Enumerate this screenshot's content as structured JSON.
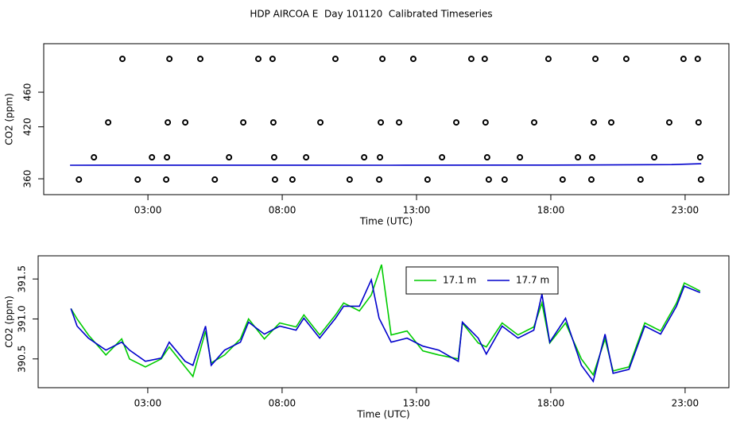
{
  "title": "HDP AIRCOA E  Day 101120  Calibrated Timeseries",
  "chart_data": [
    {
      "type": "scatter",
      "x_label": "Time (UTC)",
      "y_label": "CO2 (ppm)",
      "xlim": [
        -0.88,
        24.63
      ],
      "ylim": [
        341.7,
        516
      ],
      "xticks": [
        {
          "value": 3,
          "label": "03:00"
        },
        {
          "value": 8,
          "label": "08:00"
        },
        {
          "value": 13,
          "label": "13:00"
        },
        {
          "value": 18,
          "label": "18:00"
        },
        {
          "value": 23,
          "label": "23:00"
        }
      ],
      "yticks": [
        360,
        420,
        460
      ],
      "series": [
        {
          "color": "#000000",
          "x": [
            2.05,
            3.8,
            4.95,
            7.11,
            7.64,
            9.98,
            11.73,
            12.88,
            15.04,
            15.54,
            17.91,
            19.66,
            20.81,
            22.94,
            23.47,
            1.52,
            3.74,
            4.39,
            6.55,
            7.67,
            9.42,
            11.67,
            12.35,
            14.48,
            15.57,
            17.38,
            19.6,
            20.25,
            22.41,
            23.5,
            0.99,
            3.15,
            3.71,
            6.02,
            7.7,
            8.89,
            11.05,
            11.64,
            13.95,
            15.63,
            16.85,
            19.01,
            19.54,
            21.85,
            23.56,
            0.43,
            2.62,
            3.68,
            5.49,
            7.73,
            8.38,
            10.51,
            11.61,
            13.41,
            15.69,
            16.28,
            18.44,
            19.51,
            21.34,
            23.59
          ],
          "values": [
            498.5,
            498.5,
            498.5,
            498.5,
            498.5,
            498.5,
            498.5,
            498.5,
            498.5,
            498.5,
            498.5,
            498.5,
            498.5,
            498.5,
            498.5,
            425.1,
            425.1,
            425.1,
            425.1,
            425.1,
            425.1,
            425.1,
            425.1,
            425.1,
            425.1,
            425.1,
            425.1,
            425.1,
            425.1,
            425.1,
            384.8,
            384.8,
            384.8,
            384.8,
            384.8,
            384.8,
            384.8,
            384.8,
            384.8,
            384.8,
            384.8,
            384.8,
            384.8,
            384.8,
            384.8,
            359.1,
            359.1,
            359.1,
            359.1,
            359.1,
            359.1,
            359.1,
            359.1,
            359.1,
            359.1,
            359.1,
            359.1,
            359.1,
            359.1,
            359.1
          ]
        },
        {
          "type": "line",
          "color": "#0000cc",
          "x": [
            0.1,
            6,
            12,
            18,
            22.5,
            23.6
          ],
          "values": [
            375.6,
            375.7,
            375.6,
            375.8,
            376.4,
            377.4
          ]
        }
      ]
    },
    {
      "type": "line",
      "x_label": "Time (UTC)",
      "y_label": "CO2 (ppm)",
      "xlim": [
        -1.08,
        24.63
      ],
      "ylim": [
        390.14,
        391.79
      ],
      "xticks": [
        {
          "value": 3,
          "label": "03:00"
        },
        {
          "value": 8,
          "label": "08:00"
        },
        {
          "value": 13,
          "label": "13:00"
        },
        {
          "value": 18,
          "label": "18:00"
        },
        {
          "value": 23,
          "label": "23:00"
        }
      ],
      "yticks": [
        390.5,
        {
          "value": 391,
          "label": "391.0"
        },
        391.5
      ],
      "series": [
        {
          "name": "17.1 m",
          "color": "#00cc00",
          "x": [
            0.14,
            0.37,
            0.79,
            1.44,
            2.03,
            2.32,
            2.91,
            3.5,
            3.8,
            4.39,
            4.68,
            5.15,
            5.36,
            5.86,
            6.45,
            6.75,
            7.34,
            7.91,
            8.52,
            8.81,
            9.4,
            9.99,
            10.29,
            10.88,
            11.32,
            11.7,
            12.06,
            12.65,
            13.24,
            13.83,
            14.56,
            14.71,
            15.3,
            15.6,
            16.19,
            16.78,
            17.37,
            17.67,
            17.96,
            18.55,
            19.14,
            19.58,
            20.02,
            20.32,
            20.91,
            21.5,
            22.09,
            22.68,
            22.97,
            23.56
          ],
          "values": [
            391.13,
            391.0,
            390.8,
            390.55,
            390.75,
            390.5,
            390.4,
            390.5,
            390.65,
            390.4,
            390.28,
            390.85,
            390.45,
            390.55,
            390.75,
            391.0,
            390.75,
            390.95,
            390.9,
            391.05,
            390.8,
            391.05,
            391.2,
            391.1,
            391.3,
            391.68,
            390.8,
            390.85,
            390.6,
            390.55,
            390.5,
            390.95,
            390.7,
            390.65,
            390.95,
            390.8,
            390.9,
            391.2,
            390.7,
            390.95,
            390.5,
            390.3,
            390.75,
            390.35,
            390.4,
            390.95,
            390.85,
            391.2,
            391.45,
            391.35
          ]
        },
        {
          "name": "17.7 m",
          "color": "#0000cc",
          "x": [
            0.14,
            0.37,
            0.79,
            1.44,
            2.03,
            2.32,
            2.91,
            3.5,
            3.8,
            4.39,
            4.68,
            5.15,
            5.36,
            5.86,
            6.45,
            6.75,
            7.34,
            7.91,
            8.52,
            8.81,
            9.4,
            9.99,
            10.29,
            10.88,
            11.32,
            11.61,
            12.06,
            12.65,
            13.24,
            13.83,
            14.56,
            14.71,
            15.3,
            15.6,
            16.19,
            16.78,
            17.37,
            17.67,
            17.96,
            18.55,
            19.14,
            19.58,
            20.02,
            20.32,
            20.91,
            21.5,
            22.09,
            22.68,
            22.97,
            23.56
          ],
          "values": [
            391.13,
            390.91,
            390.76,
            390.61,
            390.71,
            390.61,
            390.47,
            390.51,
            390.71,
            390.47,
            390.42,
            390.91,
            390.42,
            390.61,
            390.71,
            390.96,
            390.81,
            390.91,
            390.86,
            391.01,
            390.76,
            391.01,
            391.16,
            391.16,
            391.49,
            391.01,
            390.71,
            390.76,
            390.66,
            390.61,
            390.47,
            390.96,
            390.76,
            390.56,
            390.91,
            390.76,
            390.86,
            391.31,
            390.71,
            391.01,
            390.42,
            390.22,
            390.81,
            390.32,
            390.37,
            390.91,
            390.81,
            391.16,
            391.41,
            391.33
          ]
        }
      ]
    }
  ]
}
